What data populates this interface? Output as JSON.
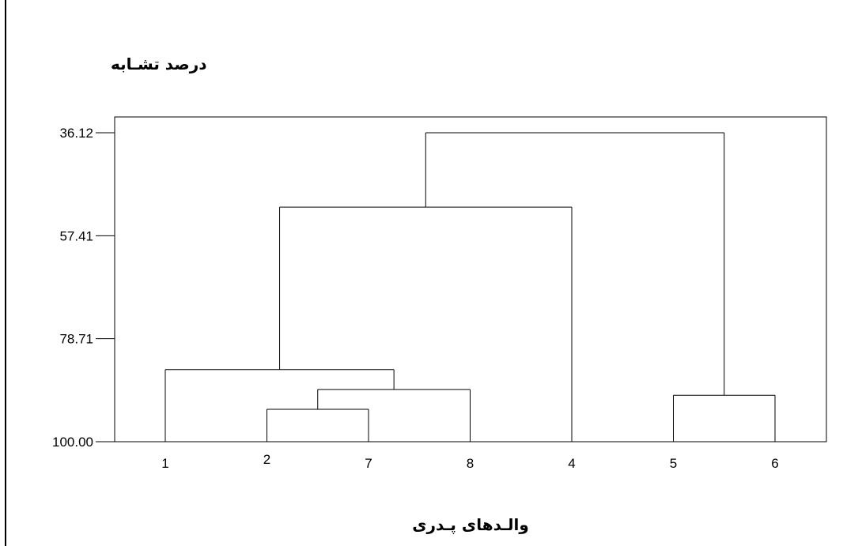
{
  "chart_data": {
    "type": "dendrogram",
    "ylabel": "درصد تشـابه",
    "xlabel": "والـدهای پـدری",
    "y_ticks": [
      "36.12",
      "57.41",
      "78.71",
      "100.00"
    ],
    "y_tick_values": [
      36.12,
      57.41,
      78.71,
      100.0
    ],
    "ylim": [
      33.0,
      100.0
    ],
    "leaf_order": [
      "1",
      "2",
      "7",
      "8",
      "4",
      "5",
      "6"
    ],
    "merges": [
      {
        "left": "2",
        "right": "7",
        "similarity": 93.3
      },
      {
        "left": "2-7",
        "right": "8",
        "similarity": 89.2
      },
      {
        "left": "5",
        "right": "6",
        "similarity": 90.4
      },
      {
        "left": "1",
        "right": "2-7-8",
        "similarity": 85.1
      },
      {
        "left": "1-2-7-8",
        "right": "4",
        "similarity": 51.5
      },
      {
        "left": "1-2-7-8-4",
        "right": "5-6",
        "similarity": 36.12
      }
    ],
    "grid": false
  }
}
